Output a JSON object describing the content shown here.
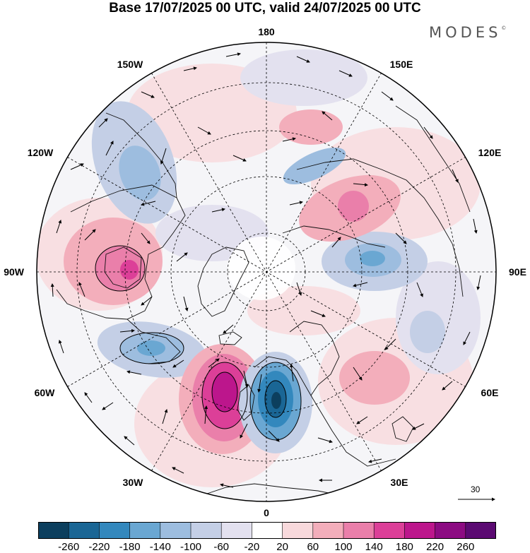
{
  "title": "Base 17/07/2025 00 UTC, valid 24/07/2025 00 UTC",
  "brand": {
    "name": "MODES",
    "mark": "©"
  },
  "longitude_labels": {
    "lon_180": "180",
    "lon_150E": "150E",
    "lon_120E": "120E",
    "lon_90E": "90E",
    "lon_60E": "60E",
    "lon_30E": "30E",
    "lon_0": "0",
    "lon_30W": "30W",
    "lon_60W": "60W",
    "lon_90W": "90W",
    "lon_120W": "120W",
    "lon_150W": "150W"
  },
  "colorbar": {
    "ticks": [
      "-260",
      "-220",
      "-180",
      "-140",
      "-100",
      "-60",
      "-20",
      "20",
      "60",
      "100",
      "140",
      "180",
      "220",
      "260"
    ],
    "colors": [
      "#0c3f5e",
      "#1a6695",
      "#3388bd",
      "#6aa7d2",
      "#9dbddf",
      "#c4cfe6",
      "#e3e1ef",
      "#ffffff",
      "#f8d9dc",
      "#f3aebb",
      "#ea7faa",
      "#dc3f98",
      "#bc168c",
      "#8c0b82",
      "#5b0a72"
    ]
  },
  "vector_key": {
    "label": "30"
  },
  "anomalies": [
    {
      "name": "anom-pos-northatlantic",
      "value": 240
    },
    {
      "name": "anom-neg-europe",
      "value": -240
    },
    {
      "name": "anom-pos-hudson",
      "value": 180
    },
    {
      "name": "anom-neg-labrador",
      "value": -140
    },
    {
      "name": "anom-neg-alaska",
      "value": -140
    },
    {
      "name": "anom-neg-siberia",
      "value": -140
    },
    {
      "name": "anom-pos-eastsiberia",
      "value": 150
    },
    {
      "name": "anom-pos-scandinavia",
      "value": 100
    },
    {
      "name": "anom-pos-pacific",
      "value": 80
    },
    {
      "name": "anom-neg-eastsiberia",
      "value": -80
    }
  ]
}
